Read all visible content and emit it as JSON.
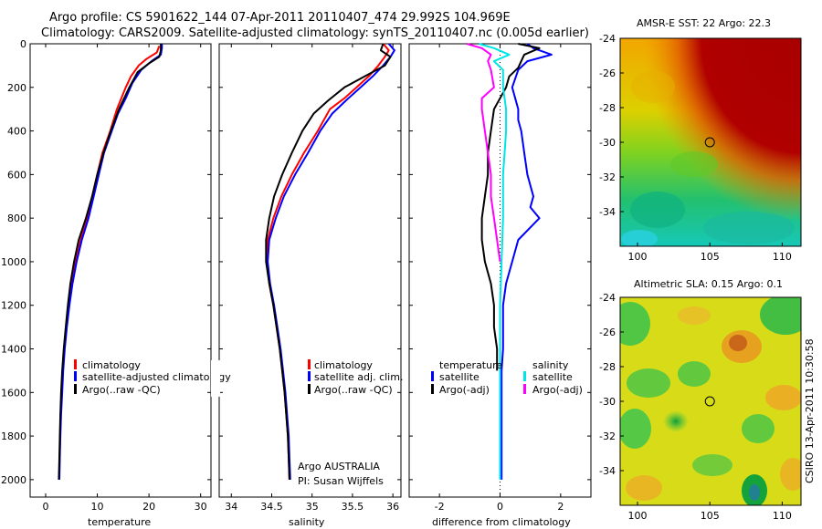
{
  "header": {
    "line1": "Argo profile: CS 5901622_144 07-Apr-2011 20110407_474 29.992S 104.969E",
    "line2": "Climatology: CARS2009. Satellite-adjusted climatology: synTS_20110407.nc (0.005d earlier)"
  },
  "side_caption": "CSIRO 13-Apr-2011 10:30:58",
  "colors": {
    "climatology": "#ff0000",
    "satellite": "#0000ff",
    "argo": "#000000",
    "sal_sat": "#00e5e5",
    "sal_argo": "#ff00ff"
  },
  "chart_data": [
    {
      "type": "line",
      "xlabel": "temperature",
      "ylabel": "",
      "xlim": [
        -3,
        32
      ],
      "ylim": [
        2080,
        0
      ],
      "y_reversed": true,
      "xticks": [
        0,
        10,
        20,
        30
      ],
      "yticks": [
        0,
        200,
        400,
        600,
        800,
        1000,
        1200,
        1400,
        1600,
        1800,
        2000
      ],
      "legend": [
        "climatology",
        "satellite-adjusted climatology",
        "Argo(..raw -QC)"
      ],
      "series": [
        {
          "name": "climatology",
          "color": "#ff0000",
          "points": [
            [
              22.0,
              10
            ],
            [
              21.5,
              40
            ],
            [
              19.5,
              70
            ],
            [
              18.0,
              100
            ],
            [
              16.5,
              150
            ],
            [
              15.5,
              200
            ],
            [
              13.8,
              300
            ],
            [
              12.5,
              400
            ],
            [
              11.0,
              500
            ],
            [
              10.0,
              600
            ],
            [
              9.0,
              700
            ],
            [
              8.0,
              800
            ],
            [
              6.8,
              900
            ],
            [
              5.8,
              1000
            ],
            [
              5.0,
              1100
            ],
            [
              4.5,
              1200
            ],
            [
              4.0,
              1300
            ],
            [
              3.6,
              1400
            ],
            [
              3.3,
              1500
            ],
            [
              3.1,
              1600
            ],
            [
              2.9,
              1700
            ],
            [
              2.8,
              1800
            ],
            [
              2.7,
              1900
            ],
            [
              2.6,
              2000
            ]
          ]
        },
        {
          "name": "satellite-adjusted climatology",
          "color": "#0000ff",
          "points": [
            [
              22.5,
              0
            ],
            [
              22.5,
              20
            ],
            [
              22.3,
              50
            ],
            [
              20.5,
              80
            ],
            [
              18.5,
              120
            ],
            [
              16.8,
              180
            ],
            [
              15.5,
              250
            ],
            [
              14.0,
              320
            ],
            [
              12.8,
              400
            ],
            [
              11.3,
              500
            ],
            [
              10.3,
              600
            ],
            [
              9.3,
              700
            ],
            [
              8.3,
              800
            ],
            [
              7.0,
              900
            ],
            [
              6.0,
              1000
            ],
            [
              5.2,
              1100
            ],
            [
              4.6,
              1200
            ],
            [
              4.1,
              1300
            ],
            [
              3.7,
              1400
            ],
            [
              3.4,
              1500
            ],
            [
              3.2,
              1600
            ],
            [
              3.0,
              1700
            ],
            [
              2.85,
              1800
            ],
            [
              2.75,
              1900
            ],
            [
              2.65,
              2000
            ]
          ]
        },
        {
          "name": "Argo(..raw -QC)",
          "color": "#000000",
          "points": [
            [
              22.3,
              0
            ],
            [
              22.3,
              30
            ],
            [
              22.0,
              60
            ],
            [
              20.0,
              90
            ],
            [
              17.8,
              130
            ],
            [
              16.2,
              200
            ],
            [
              14.2,
              300
            ],
            [
              12.6,
              400
            ],
            [
              11.2,
              500
            ],
            [
              10.0,
              600
            ],
            [
              9.0,
              700
            ],
            [
              7.8,
              800
            ],
            [
              6.4,
              900
            ],
            [
              5.5,
              1000
            ],
            [
              4.8,
              1100
            ],
            [
              4.3,
              1200
            ],
            [
              3.9,
              1300
            ],
            [
              3.5,
              1400
            ],
            [
              3.2,
              1500
            ],
            [
              3.0,
              1600
            ],
            [
              2.85,
              1700
            ],
            [
              2.75,
              1800
            ],
            [
              2.65,
              1900
            ],
            [
              2.55,
              2000
            ]
          ]
        }
      ]
    },
    {
      "type": "line",
      "xlabel": "salinity",
      "ylabel": "",
      "xlim": [
        33.85,
        36.1
      ],
      "ylim": [
        2080,
        0
      ],
      "y_reversed": true,
      "xticks": [
        34,
        34.5,
        35,
        35.5,
        36
      ],
      "xticklabels": [
        "34",
        "34.5",
        "35",
        "35.5",
        "36"
      ],
      "legend": [
        "climatology",
        "satellite adj. clim.",
        "Argo(..raw -QC)"
      ],
      "annotations": [
        "Argo AUSTRALIA",
        "PI: Susan Wijffels"
      ],
      "series": [
        {
          "name": "climatology",
          "color": "#ff0000",
          "points": [
            [
              35.88,
              0
            ],
            [
              35.95,
              30
            ],
            [
              35.9,
              60
            ],
            [
              35.82,
              100
            ],
            [
              35.7,
              150
            ],
            [
              35.55,
              200
            ],
            [
              35.4,
              250
            ],
            [
              35.22,
              300
            ],
            [
              35.07,
              400
            ],
            [
              34.9,
              500
            ],
            [
              34.75,
              600
            ],
            [
              34.62,
              700
            ],
            [
              34.52,
              800
            ],
            [
              34.45,
              900
            ],
            [
              34.44,
              1000
            ],
            [
              34.47,
              1100
            ],
            [
              34.52,
              1200
            ],
            [
              34.56,
              1300
            ],
            [
              34.6,
              1400
            ],
            [
              34.63,
              1500
            ],
            [
              34.66,
              1600
            ],
            [
              34.68,
              1700
            ],
            [
              34.7,
              1800
            ],
            [
              34.71,
              1900
            ],
            [
              34.72,
              2000
            ]
          ]
        },
        {
          "name": "satellite adj. clim.",
          "color": "#0000ff",
          "points": [
            [
              35.95,
              0
            ],
            [
              36.02,
              30
            ],
            [
              35.97,
              60
            ],
            [
              35.88,
              100
            ],
            [
              35.75,
              150
            ],
            [
              35.6,
              200
            ],
            [
              35.42,
              260
            ],
            [
              35.25,
              320
            ],
            [
              35.1,
              400
            ],
            [
              34.95,
              500
            ],
            [
              34.79,
              600
            ],
            [
              34.65,
              700
            ],
            [
              34.55,
              800
            ],
            [
              34.47,
              900
            ],
            [
              34.45,
              1000
            ],
            [
              34.48,
              1100
            ],
            [
              34.53,
              1200
            ],
            [
              34.57,
              1300
            ],
            [
              34.61,
              1400
            ],
            [
              34.64,
              1500
            ],
            [
              34.67,
              1600
            ],
            [
              34.69,
              1700
            ],
            [
              34.71,
              1800
            ],
            [
              34.72,
              1900
            ],
            [
              34.73,
              2000
            ]
          ]
        },
        {
          "name": "Argo(..raw -QC)",
          "color": "#000000",
          "points": [
            [
              35.88,
              0
            ],
            [
              35.85,
              30
            ],
            [
              35.97,
              60
            ],
            [
              35.9,
              100
            ],
            [
              35.65,
              150
            ],
            [
              35.4,
              200
            ],
            [
              35.2,
              260
            ],
            [
              35.02,
              320
            ],
            [
              34.88,
              400
            ],
            [
              34.75,
              500
            ],
            [
              34.63,
              600
            ],
            [
              34.53,
              700
            ],
            [
              34.47,
              800
            ],
            [
              34.43,
              900
            ],
            [
              34.43,
              1000
            ],
            [
              34.47,
              1100
            ],
            [
              34.52,
              1200
            ],
            [
              34.56,
              1300
            ],
            [
              34.6,
              1400
            ],
            [
              34.63,
              1500
            ],
            [
              34.66,
              1600
            ],
            [
              34.68,
              1700
            ],
            [
              34.7,
              1800
            ],
            [
              34.71,
              1900
            ],
            [
              34.72,
              2000
            ]
          ]
        }
      ]
    },
    {
      "type": "line",
      "xlabel": "difference from climatology",
      "ylabel": "",
      "xlim": [
        -3,
        3
      ],
      "ylim": [
        2080,
        0
      ],
      "y_reversed": true,
      "xticks": [
        -2,
        0,
        2
      ],
      "legend_groups": [
        {
          "heading": "temperature",
          "entries": [
            "satellite",
            "Argo(-adj)"
          ]
        },
        {
          "heading": "salinity",
          "entries": [
            "satellite",
            "Argo(-adj)"
          ]
        }
      ],
      "series": [
        {
          "name": "satellite",
          "color": "#0000ff",
          "points": [
            [
              0.9,
              0
            ],
            [
              1.1,
              20
            ],
            [
              1.7,
              50
            ],
            [
              0.9,
              80
            ],
            [
              0.6,
              120
            ],
            [
              0.4,
              200
            ],
            [
              0.6,
              300
            ],
            [
              0.6,
              350
            ],
            [
              0.7,
              400
            ],
            [
              0.8,
              500
            ],
            [
              0.9,
              600
            ],
            [
              1.1,
              700
            ],
            [
              1.0,
              750
            ],
            [
              1.3,
              800
            ],
            [
              0.6,
              900
            ],
            [
              0.4,
              1000
            ],
            [
              0.2,
              1100
            ],
            [
              0.1,
              1200
            ],
            [
              0.1,
              1300
            ],
            [
              0.1,
              1400
            ],
            [
              0.05,
              1500
            ],
            [
              0.05,
              1700
            ],
            [
              0.05,
              2000
            ]
          ]
        },
        {
          "name": "Argo(-adj)",
          "color": "#000000",
          "points": [
            [
              0.6,
              0
            ],
            [
              1.3,
              20
            ],
            [
              0.8,
              50
            ],
            [
              0.7,
              80
            ],
            [
              0.6,
              110
            ],
            [
              0.3,
              150
            ],
            [
              0.2,
              200
            ],
            [
              -0.2,
              300
            ],
            [
              -0.3,
              400
            ],
            [
              -0.4,
              500
            ],
            [
              -0.4,
              600
            ],
            [
              -0.5,
              700
            ],
            [
              -0.6,
              800
            ],
            [
              -0.6,
              900
            ],
            [
              -0.5,
              1000
            ],
            [
              -0.3,
              1100
            ],
            [
              -0.2,
              1200
            ],
            [
              -0.2,
              1300
            ],
            [
              -0.1,
              1400
            ],
            [
              -0.1,
              1500
            ]
          ]
        },
        {
          "name": "satellite",
          "color": "#00e5e5",
          "points": [
            [
              -0.7,
              0
            ],
            [
              -0.2,
              20
            ],
            [
              0.3,
              50
            ],
            [
              -0.2,
              80
            ],
            [
              0.1,
              120
            ],
            [
              0.1,
              200
            ],
            [
              0.2,
              300
            ],
            [
              0.2,
              400
            ],
            [
              0.15,
              500
            ],
            [
              0.1,
              600
            ],
            [
              0.1,
              800
            ],
            [
              0.05,
              1000
            ],
            [
              0.0,
              1200
            ],
            [
              0.0,
              1500
            ],
            [
              0.0,
              2000
            ]
          ]
        },
        {
          "name": "Argo(-adj)",
          "color": "#ff00ff",
          "points": [
            [
              -1.1,
              0
            ],
            [
              -0.6,
              20
            ],
            [
              -0.3,
              50
            ],
            [
              -0.4,
              80
            ],
            [
              -0.3,
              120
            ],
            [
              -0.2,
              200
            ],
            [
              -0.6,
              250
            ],
            [
              -0.6,
              300
            ],
            [
              -0.5,
              400
            ],
            [
              -0.4,
              500
            ],
            [
              -0.3,
              600
            ],
            [
              -0.3,
              700
            ],
            [
              -0.2,
              800
            ],
            [
              -0.1,
              900
            ],
            [
              0.0,
              1000
            ]
          ]
        }
      ]
    },
    {
      "type": "heatmap",
      "title": "AMSR-E SST: 22 Argo: 22.3",
      "xlim": [
        98.8,
        111.3
      ],
      "ylim": [
        -36,
        -24
      ],
      "xticks": [
        100,
        105,
        110
      ],
      "yticks": [
        -24,
        -26,
        -28,
        -30,
        -32,
        -34
      ],
      "marker": [
        105,
        -30
      ]
    },
    {
      "type": "heatmap",
      "title": "Altimetric SLA: 0.15 Argo: 0.1",
      "xlim": [
        98.8,
        111.3
      ],
      "ylim": [
        -36,
        -24
      ],
      "xticks": [
        100,
        105,
        110
      ],
      "yticks": [
        -24,
        -26,
        -28,
        -30,
        -32,
        -34
      ],
      "marker": [
        105,
        -30
      ]
    }
  ]
}
